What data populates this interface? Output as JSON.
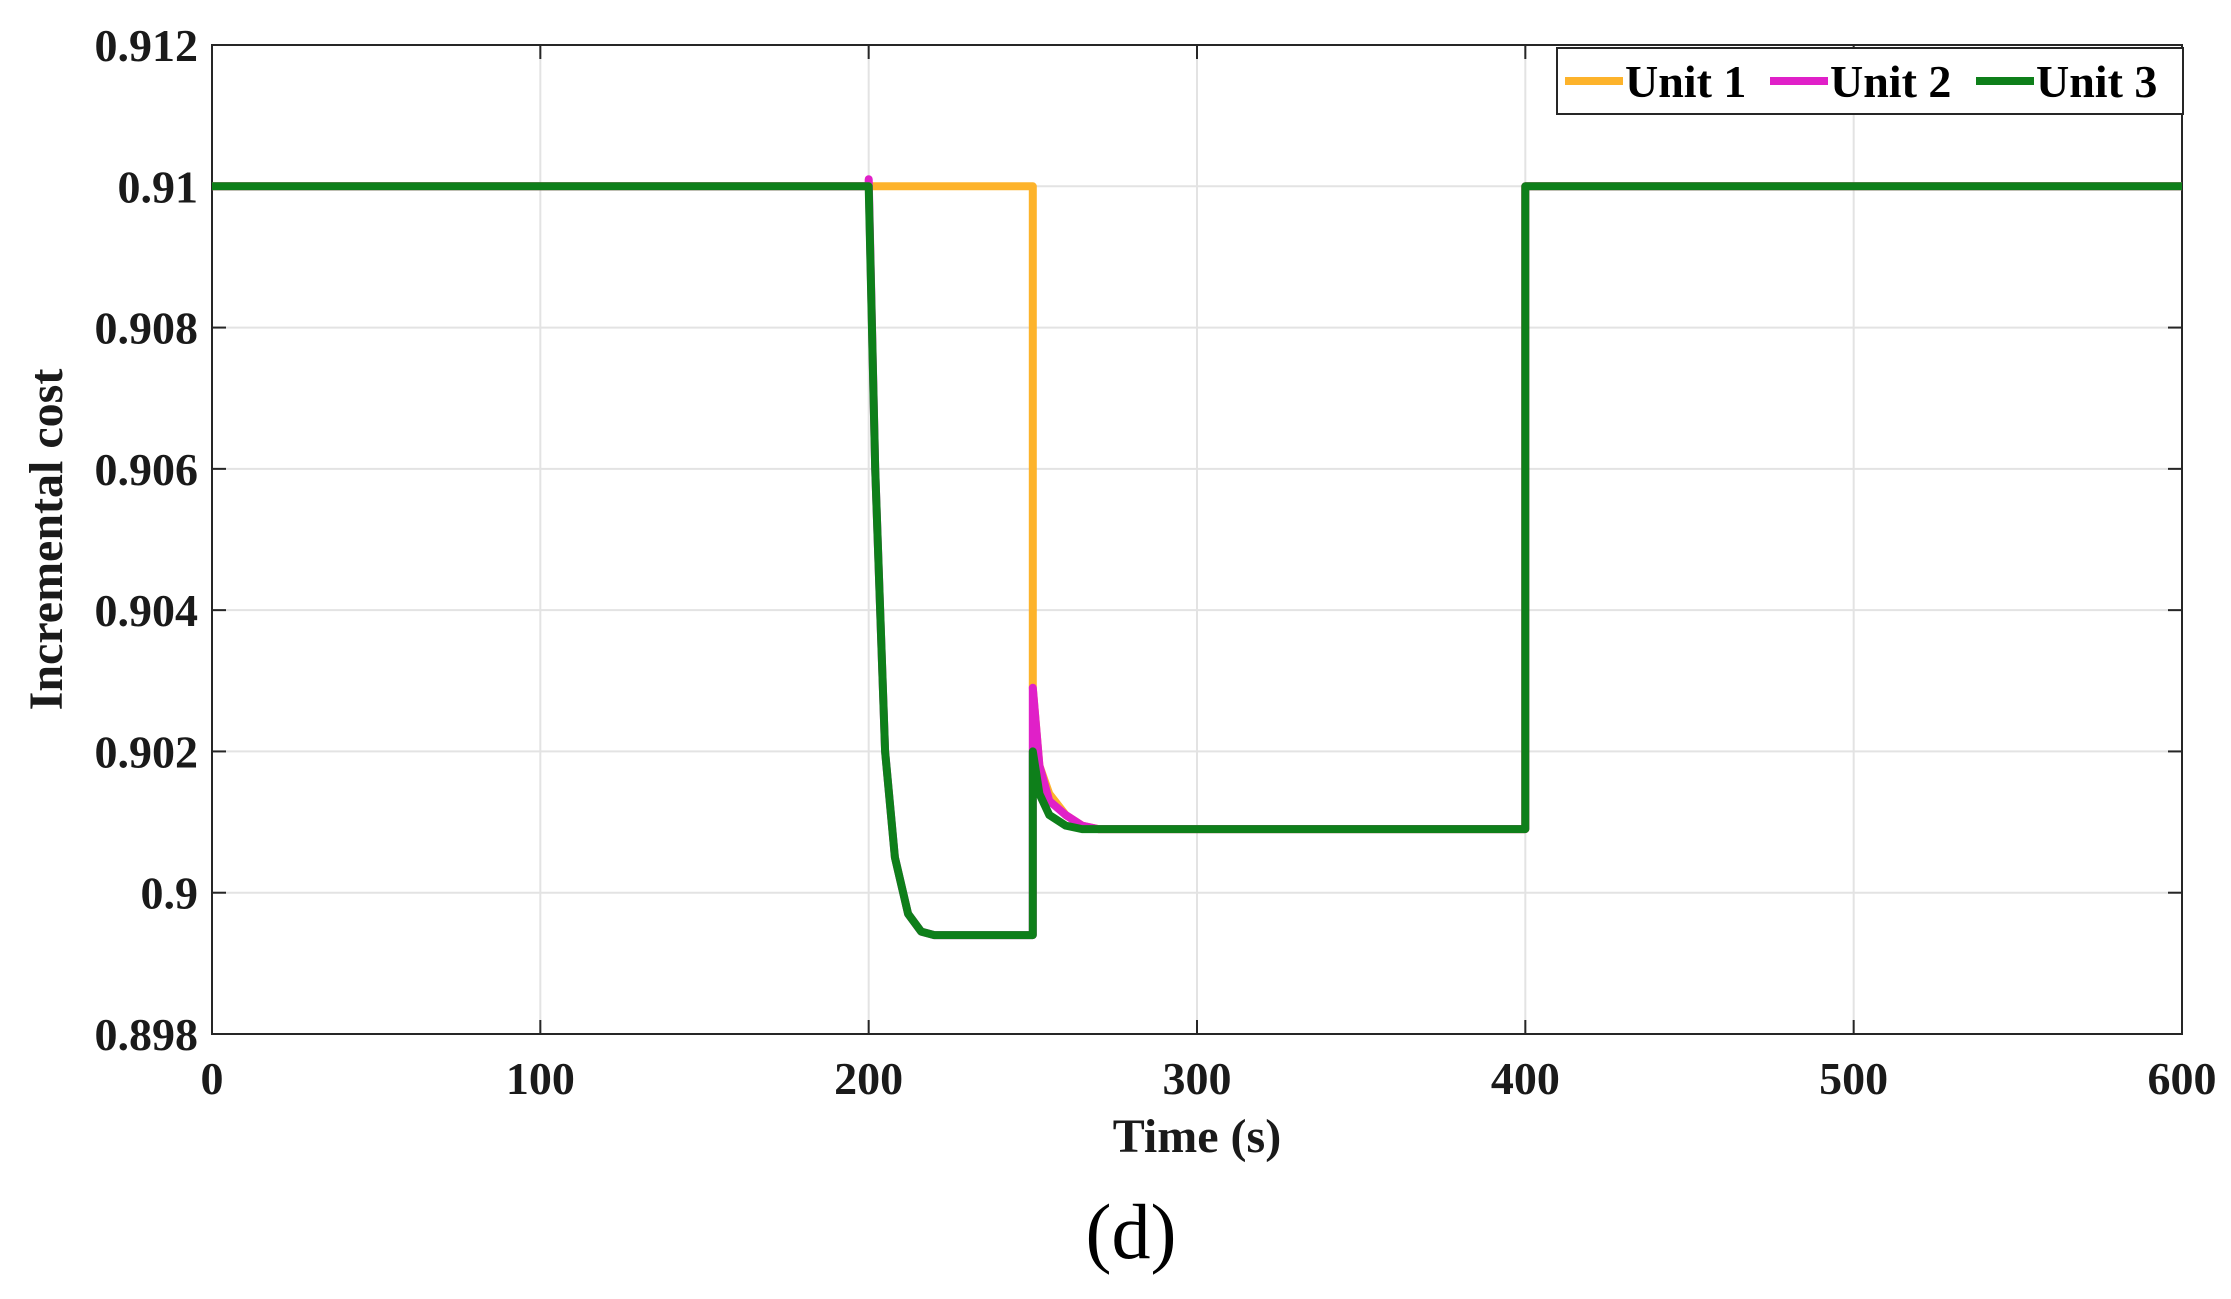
{
  "chart_data": {
    "type": "line",
    "title": "",
    "caption": "(d)",
    "xlabel": "Time (s)",
    "ylabel": "Incremental cost",
    "xlim": [
      0,
      600
    ],
    "ylim": [
      0.898,
      0.912
    ],
    "xticks": [
      0,
      100,
      200,
      300,
      400,
      500,
      600
    ],
    "xtick_labels": [
      "0",
      "100",
      "200",
      "300",
      "400",
      "500",
      "600"
    ],
    "yticks": [
      0.898,
      0.9,
      0.902,
      0.904,
      0.906,
      0.908,
      0.91,
      0.912
    ],
    "ytick_labels": [
      "0.898",
      "0.9",
      "0.902",
      "0.904",
      "0.906",
      "0.908",
      "0.91",
      "0.912"
    ],
    "grid": true,
    "legend_position": "top-right",
    "series": [
      {
        "name": "Unit 1",
        "color": "#FDB32B",
        "x": [
          0,
          250,
          250,
          252,
          255,
          260,
          265,
          270,
          280,
          300,
          350,
          400,
          400,
          600
        ],
        "y": [
          0.91,
          0.91,
          0.9029,
          0.9018,
          0.9014,
          0.9011,
          0.90095,
          0.9009,
          0.9009,
          0.9009,
          0.9009,
          0.9009,
          0.91,
          0.91
        ]
      },
      {
        "name": "Unit 2",
        "color": "#E020C8",
        "x": [
          0,
          200,
          200,
          202,
          205,
          208,
          212,
          216,
          220,
          230,
          250,
          250,
          252,
          255,
          260,
          265,
          270,
          280,
          300,
          350,
          400,
          400,
          600
        ],
        "y": [
          0.91,
          0.91,
          0.9101,
          0.906,
          0.902,
          0.9005,
          0.8997,
          0.89945,
          0.8994,
          0.8994,
          0.8994,
          0.9029,
          0.9018,
          0.9013,
          0.9011,
          0.90095,
          0.9009,
          0.9009,
          0.9009,
          0.9009,
          0.9009,
          0.91,
          0.91
        ]
      },
      {
        "name": "Unit 3",
        "color": "#0E7F1A",
        "x": [
          0,
          200,
          202,
          205,
          208,
          212,
          216,
          220,
          230,
          250,
          250,
          252,
          255,
          260,
          265,
          270,
          280,
          300,
          350,
          400,
          400,
          600
        ],
        "y": [
          0.91,
          0.91,
          0.906,
          0.902,
          0.9005,
          0.8997,
          0.89945,
          0.8994,
          0.8994,
          0.8994,
          0.902,
          0.9014,
          0.9011,
          0.90095,
          0.9009,
          0.9009,
          0.9009,
          0.9009,
          0.9009,
          0.9009,
          0.91,
          0.91
        ]
      }
    ]
  }
}
